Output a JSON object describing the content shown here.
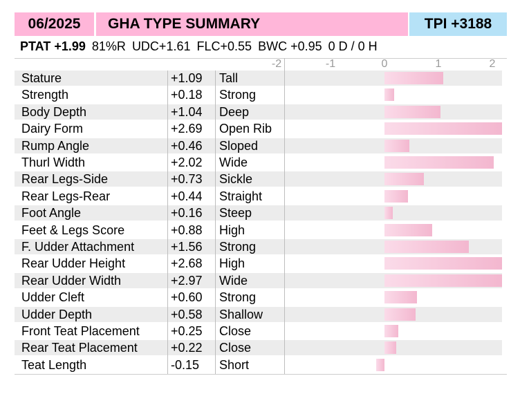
{
  "header": {
    "date": "06/2025",
    "title": "GHA TYPE SUMMARY",
    "tpi": "TPI +3188"
  },
  "stats": {
    "ptat": "PTAT +1.99",
    "reliability": "81%R",
    "udc": "UDC+1.61",
    "flc": "FLC+0.55",
    "bwc": "BWC +0.95",
    "dh": "0 D /  0 H"
  },
  "colors": {
    "header_pink": "#ffb6d9",
    "tpi_blue": "#b6e2f7",
    "bar_pink": "#f3b7cf",
    "row_stripe": "#ececec"
  },
  "chart_data": {
    "type": "bar",
    "orientation": "horizontal",
    "axis_ticks": [
      "-2",
      "-1",
      "0",
      "1",
      "2"
    ],
    "xlim": [
      -2,
      2
    ],
    "categories": [
      "Stature",
      "Strength",
      "Body Depth",
      "Dairy Form",
      "Rump Angle",
      "Thurl Width",
      "Rear Legs-Side",
      "Rear Legs-Rear",
      "Foot Angle",
      "Feet & Legs Score",
      "F. Udder Attachment",
      "Rear Udder Height",
      "Rear Udder Width",
      "Udder Cleft",
      "Udder Depth",
      "Front Teat Placement",
      "Rear Teat Placement",
      "Teat Length"
    ],
    "values": [
      1.09,
      0.18,
      1.04,
      2.69,
      0.46,
      2.02,
      0.73,
      0.44,
      0.16,
      0.88,
      1.56,
      2.68,
      2.97,
      0.6,
      0.58,
      0.25,
      0.22,
      -0.15
    ],
    "value_labels": [
      "+1.09",
      "+0.18",
      "+1.04",
      "+2.69",
      "+0.46",
      "+2.02",
      "+0.73",
      "+0.44",
      "+0.16",
      "+0.88",
      "+1.56",
      "+2.68",
      "+2.97",
      "+0.60",
      "+0.58",
      "+0.25",
      "+0.22",
      "-0.15"
    ],
    "descriptors": [
      "Tall",
      "Strong",
      "Deep",
      "Open Rib",
      "Sloped",
      "Wide",
      "Sickle",
      "Straight",
      "Steep",
      "High",
      "Strong",
      "High",
      "Wide",
      "Strong",
      "Shallow",
      "Close",
      "Close",
      "Short"
    ]
  }
}
